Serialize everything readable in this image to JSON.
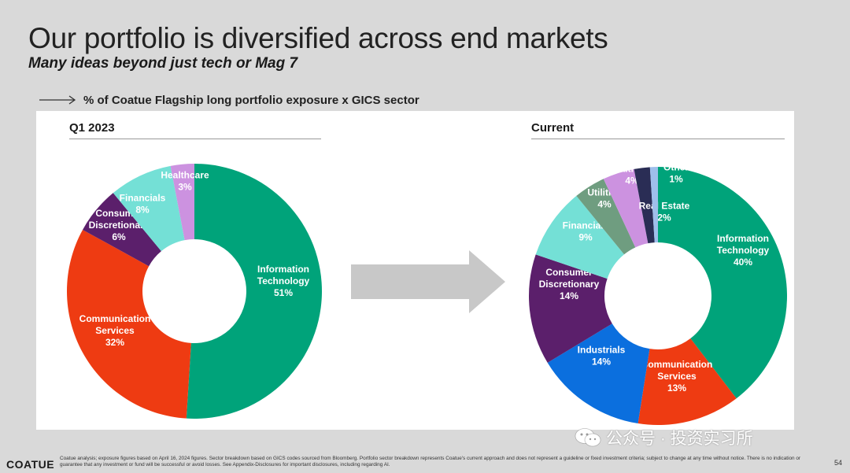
{
  "header": {
    "title": "Our portfolio is diversified across end markets",
    "subtitle": "Many ideas beyond just tech or Mag 7",
    "caption": "% of Coatue Flagship long portfolio exposure x GICS sector"
  },
  "colors": {
    "information_technology": "#00a37a",
    "communication_services": "#ee3b12",
    "industrials": "#0b6fde",
    "consumer_discretionary": "#5b1f6b",
    "financials": "#74e0d6",
    "utilities": "#6f9d80",
    "healthcare": "#cc92e0",
    "real_estate": "#2a2d55",
    "other": "#9fbfeb",
    "arrow": "#c8c8c8"
  },
  "chart_data": [
    {
      "type": "pie",
      "title": "Q1 2023",
      "slices": [
        {
          "label": [
            "Information",
            "Technology"
          ],
          "value": 51,
          "value_label": "51%",
          "color": "#00a37a"
        },
        {
          "label": [
            "Communication",
            "Services"
          ],
          "value": 32,
          "value_label": "32%",
          "color": "#ee3b12"
        },
        {
          "label": [
            "Consumer",
            "Discretionary"
          ],
          "value": 6,
          "value_label": "6%",
          "color": "#5b1f6b"
        },
        {
          "label": [
            "Financials"
          ],
          "value": 8,
          "value_label": "8%",
          "color": "#74e0d6"
        },
        {
          "label": [
            "Healthcare"
          ],
          "value": 3,
          "value_label": "3%",
          "color": "#cc92e0"
        }
      ]
    },
    {
      "type": "pie",
      "title": "Current",
      "slices": [
        {
          "label": [
            "Information",
            "Technology"
          ],
          "value": 40,
          "value_label": "40%",
          "color": "#00a37a"
        },
        {
          "label": [
            "Communication",
            "Services"
          ],
          "value": 13,
          "value_label": "13%",
          "color": "#ee3b12"
        },
        {
          "label": [
            "Industrials"
          ],
          "value": 14,
          "value_label": "14%",
          "color": "#0b6fde"
        },
        {
          "label": [
            "Consumer",
            "Discretionary"
          ],
          "value": 14,
          "value_label": "14%",
          "color": "#5b1f6b"
        },
        {
          "label": [
            "Financials"
          ],
          "value": 9,
          "value_label": "9%",
          "color": "#74e0d6"
        },
        {
          "label": [
            "Utilities"
          ],
          "value": 4,
          "value_label": "4%",
          "color": "#6f9d80"
        },
        {
          "label": [
            "Healthcare"
          ],
          "value": 4,
          "value_label": "4%",
          "color": "#cc92e0"
        },
        {
          "label": [
            "Real Estate"
          ],
          "value": 2,
          "value_label": "2%",
          "color": "#2a2d55"
        },
        {
          "label": [
            "Other"
          ],
          "value": 1,
          "value_label": "1%",
          "color": "#9fbfeb"
        }
      ]
    }
  ],
  "footer": {
    "logo": "COATUE",
    "disclaimer": "Coatue analysis; exposure figures based on April 16, 2024 figures. Sector breakdown based on GICS codes sourced from Bloomberg. Portfolio sector breakdown represents Coatue's current approach and does not represent a guideline or fixed investment criteria; subject to change at any time without notice. There is no indication or guarantee that any investment or fund will be successful or avoid losses. See Appendix-Disclosures for important disclosures, including regarding AI.",
    "page_number": "54"
  },
  "watermark": {
    "text": "公众号 · 投资实习所",
    "icon": "wechat-icon"
  }
}
